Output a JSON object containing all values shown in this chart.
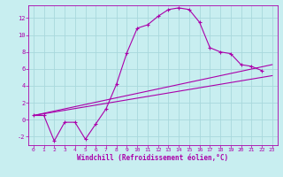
{
  "background_color": "#c8eef0",
  "grid_color": "#a8d8dc",
  "line_color": "#aa00aa",
  "xlabel": "Windchill (Refroidissement éolien,°C)",
  "xlabel_color": "#aa00aa",
  "tick_color": "#aa00aa",
  "ylim": [
    -3,
    13.5
  ],
  "xlim": [
    -0.5,
    23.5
  ],
  "yticks": [
    -2,
    0,
    2,
    4,
    6,
    8,
    10,
    12
  ],
  "xtick_labels": [
    "0",
    "1",
    "2",
    "3",
    "4",
    "5",
    "6",
    "7",
    "8",
    "9",
    "10",
    "11",
    "12",
    "13",
    "14",
    "15",
    "16",
    "17",
    "18",
    "19",
    "20",
    "21",
    "22",
    "23"
  ],
  "xtick_pos": [
    0,
    1,
    2,
    3,
    4,
    5,
    6,
    7,
    8,
    9,
    10,
    11,
    12,
    13,
    14,
    15,
    16,
    17,
    18,
    19,
    20,
    21,
    22,
    23
  ],
  "series_x": [
    0,
    1,
    2,
    3,
    4,
    5,
    6,
    7,
    8,
    9,
    10,
    11,
    12,
    13,
    14,
    15,
    16,
    17,
    18,
    19,
    20,
    21,
    22
  ],
  "series_y": [
    0.5,
    0.5,
    -2.5,
    -0.3,
    -0.3,
    -2.3,
    -0.5,
    1.3,
    4.2,
    7.9,
    10.8,
    11.2,
    12.2,
    13.0,
    13.2,
    13.0,
    11.5,
    8.5,
    8.0,
    7.8,
    6.5,
    6.3,
    5.8
  ],
  "line2_x": [
    0,
    23
  ],
  "line2_y": [
    0.5,
    6.5
  ],
  "line3_x": [
    0,
    23
  ],
  "line3_y": [
    0.5,
    5.2
  ]
}
